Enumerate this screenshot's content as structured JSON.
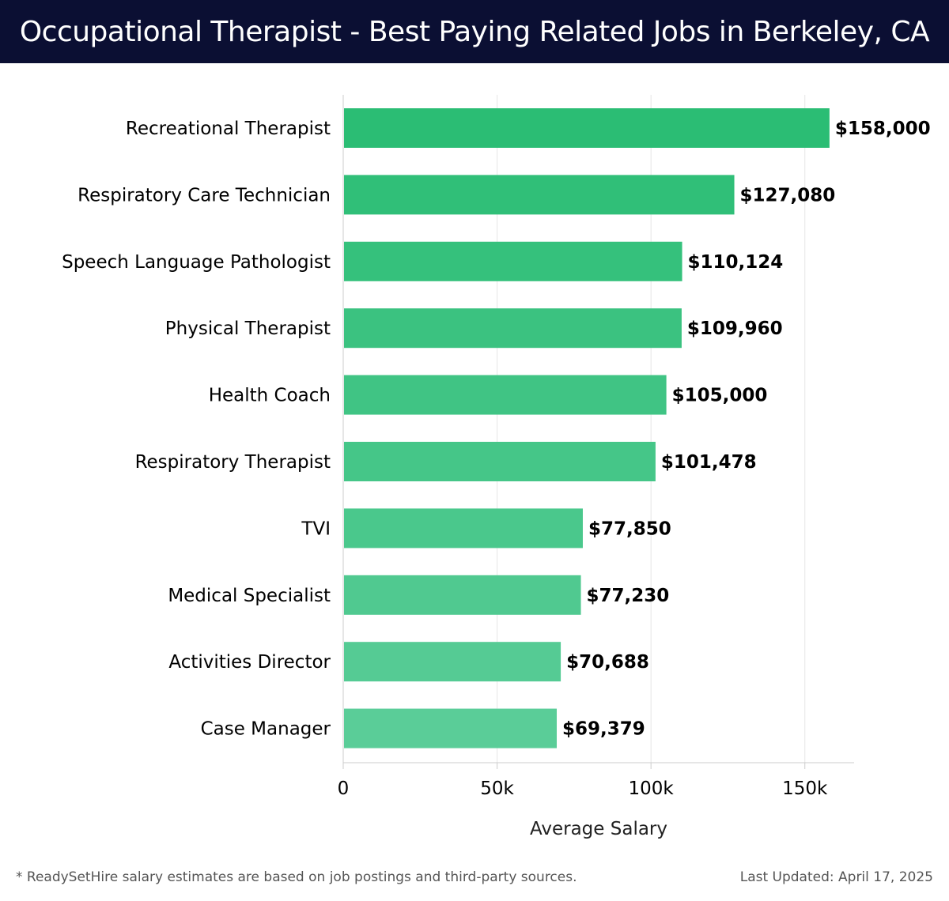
{
  "page": {
    "title": "Occupational Therapist - Best Paying Related Jobs in Berkeley, CA",
    "footnote": "* ReadySetHire salary estimates are based on job postings and third-party sources.",
    "last_updated": "Last Updated: April 17, 2025"
  },
  "chart_data": {
    "type": "bar",
    "orientation": "horizontal",
    "categories": [
      "Recreational Therapist",
      "Respiratory Care Technician",
      "Speech Language Pathologist",
      "Physical Therapist",
      "Health Coach",
      "Respiratory Therapist",
      "TVI",
      "Medical Specialist",
      "Activities Director",
      "Case Manager"
    ],
    "values": [
      158000,
      127080,
      110124,
      109960,
      105000,
      101478,
      77850,
      77230,
      70688,
      69379
    ],
    "value_labels": [
      "$158,000",
      "$127,080",
      "$110,124",
      "$109,960",
      "$105,000",
      "$101,478",
      "$77,850",
      "$77,230",
      "$70,688",
      "$69,379"
    ],
    "xlabel": "Average Salary",
    "ylabel": "",
    "xlim": [
      0,
      166000
    ],
    "xticks": [
      0,
      50000,
      100000,
      150000
    ],
    "xtick_labels": [
      "0",
      "50k",
      "100k",
      "150k"
    ],
    "grid": true,
    "colors": {
      "bar_top": "#2bbd74",
      "bar_bottom": "#5acd98",
      "grid": "#e6e6e6",
      "axis": "#cccccc",
      "label": "#000000"
    }
  }
}
